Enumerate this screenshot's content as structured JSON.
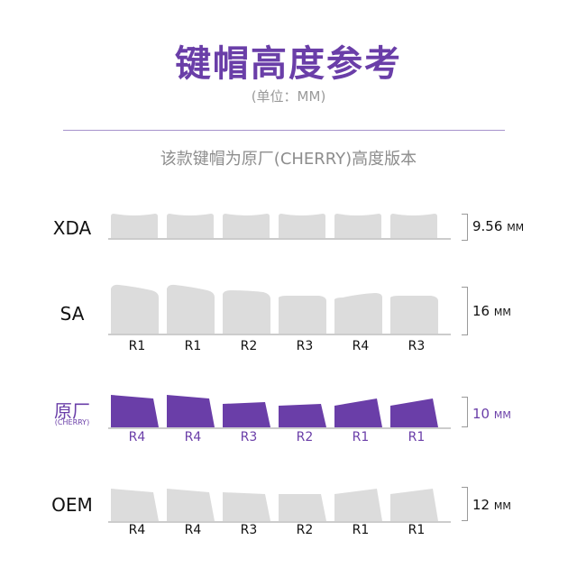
{
  "title": "键帽高度参考",
  "unit_note": "(单位：MM)",
  "note": "该款键帽为原厂(CHERRY)高度版本",
  "colors": {
    "accent": "#6a3ea8",
    "key_grey": "#dcdcdc",
    "text": "#111111",
    "muted": "#9a9a9a"
  },
  "profiles": [
    {
      "name": "XDA",
      "sub": "",
      "height_value": "9.56",
      "height_unit": "MM",
      "row_labels": [],
      "style": "grey",
      "key_shapes": [
        "xda",
        "xda",
        "xda",
        "xda",
        "xda",
        "xda"
      ]
    },
    {
      "name": "SA",
      "sub": "",
      "height_value": "16",
      "height_unit": "MM",
      "row_labels": [
        "R1",
        "R1",
        "R2",
        "R3",
        "R4",
        "R3"
      ],
      "style": "grey",
      "key_shapes": [
        "sa1",
        "sa1",
        "sa2",
        "sa3",
        "sa4",
        "sa3"
      ]
    },
    {
      "name": "原厂",
      "sub": "(CHERRY)",
      "height_value": "10",
      "height_unit": "MM",
      "row_labels": [
        "R4",
        "R4",
        "R3",
        "R2",
        "R1",
        "R1"
      ],
      "style": "purple",
      "key_shapes": [
        "c4",
        "c4",
        "c3",
        "c2",
        "c1",
        "c1"
      ]
    },
    {
      "name": "OEM",
      "sub": "",
      "height_value": "12",
      "height_unit": "MM",
      "row_labels": [
        "R4",
        "R4",
        "R3",
        "R2",
        "R1",
        "R1"
      ],
      "style": "grey",
      "key_shapes": [
        "o4",
        "o4",
        "o3",
        "o2",
        "o1",
        "o1"
      ]
    }
  ]
}
